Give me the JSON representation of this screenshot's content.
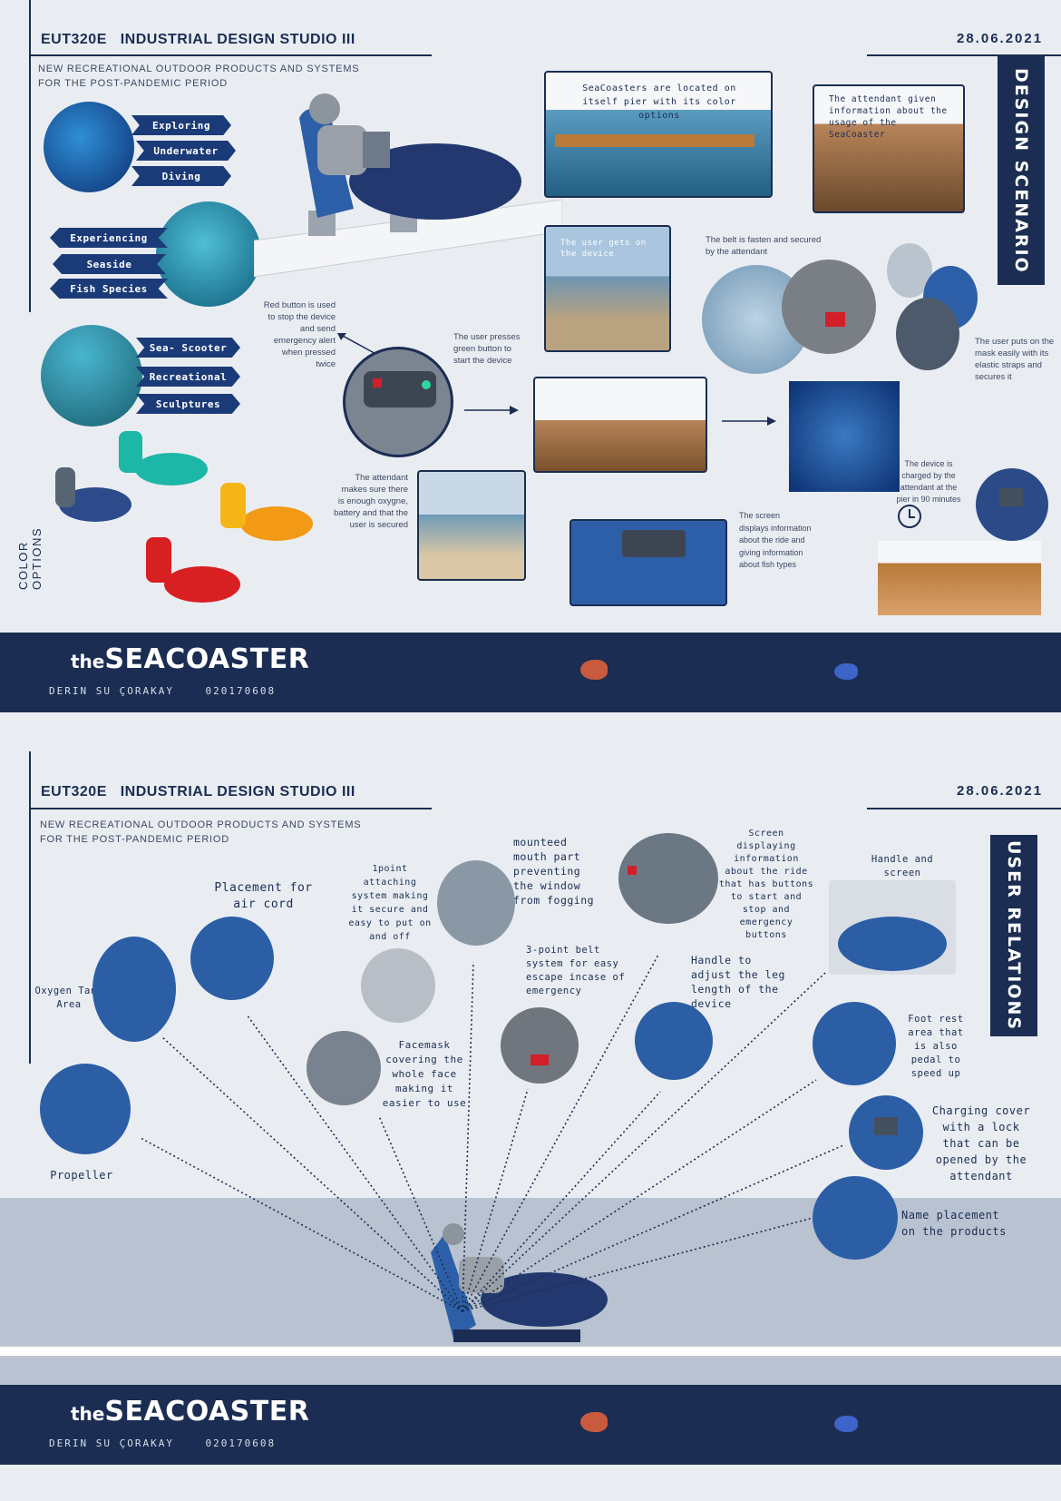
{
  "top": {
    "course": "EUT320E",
    "studio": "INDUSTRIAL DESIGN STUDIO III",
    "date": "28.06.2021",
    "subtitle1": "NEW RECREATIONAL OUTDOOR PRODUCTS AND SYSTEMS",
    "subtitle2": "FOR THE POST-PANDEMIC PERIOD",
    "side_title": "DESIGN SCENARIO",
    "color_options": "COLOR OPTIONS",
    "tags": [
      "Exploring",
      "Underwater",
      "Diving",
      "Experiencing",
      "Seaside",
      "Fish Species",
      "Sea- Scooter",
      "Recreational",
      "Sculptures"
    ],
    "notes": {
      "pier": "SeaCoasters are located on itself pier with its color options",
      "attendant_info": "The attendant given information about the usage of the SeaCoaster",
      "user_gets": "The user gets on the device",
      "belt": "The belt is fasten and secured by the attendant",
      "mask": "The user puts on the mask easily with its elastic straps and secures it",
      "red_button": "Red button is used to stop the device and send emergency alert when pressed twice",
      "green_button": "The user presses green button to start the device",
      "attendant_check": "The attendant makes sure there is enough oxygne, battery and that the user is secured",
      "screen": "The screen displays information about the ride and giving information about fish types",
      "charged": "The device is charged by the attendant at the pier in 90 minutes"
    }
  },
  "banner": {
    "the": "the",
    "name": "SEACOASTER",
    "author": "DERIN SU ÇORAKAY",
    "id": "020170608"
  },
  "bottom": {
    "course": "EUT320E",
    "studio": "INDUSTRIAL DESIGN STUDIO III",
    "date": "28.06.2021",
    "subtitle1": "NEW RECREATIONAL OUTDOOR PRODUCTS AND SYSTEMS",
    "subtitle2": "FOR THE POST-PANDEMIC PERIOD",
    "side_title": "USER RELATIONS",
    "labels": {
      "air_cord": "Placement for air cord",
      "attaching": "1point attaching system making it secure and easy to put on and off",
      "mouth": "mounteed mouth part preventing the window from fogging",
      "screen": "Screen displaying information about the ride that has buttons to start and stop and emergency buttons",
      "handle_screen": "Handle and screen",
      "oxygen": "Oxygen Tank Area",
      "facemask": "Facemask covering the whole face making it easier to use",
      "belt": "3-point belt system for easy escape incase of emergency",
      "handle_leg": "Handle to adjust the leg length of the device",
      "foot": "Foot rest area that is also pedal to speed up",
      "charging": "Charging cover with a lock that can be opened by the attendant",
      "name_place": "Name placement on the products",
      "propeller": "Propeller"
    }
  }
}
